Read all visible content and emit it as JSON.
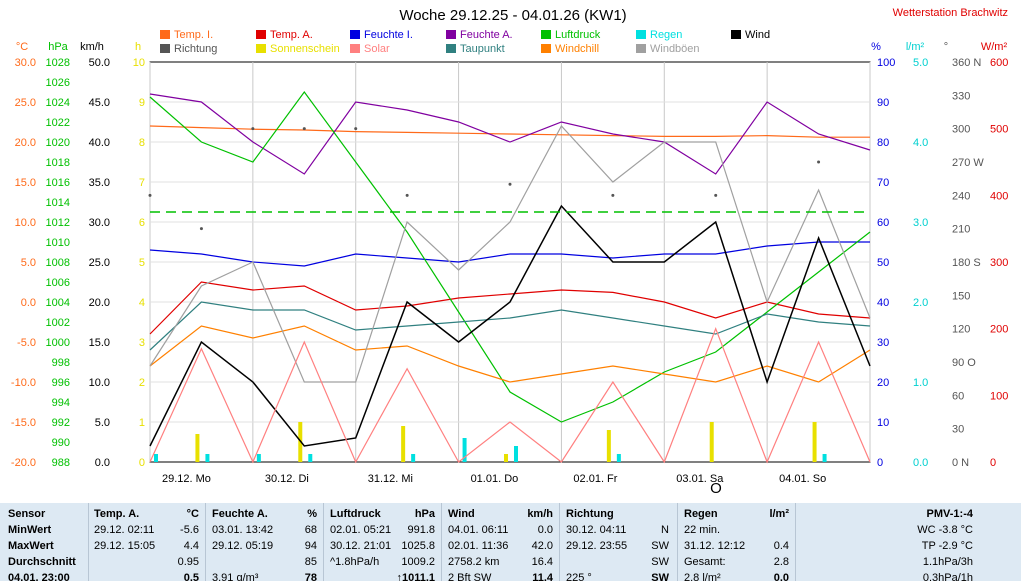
{
  "title": "Woche 29.12.25 - 04.01.26 (KW1)",
  "station": "Wetterstation Brachwitz",
  "legend": [
    {
      "label": "Temp. I.",
      "color": "#ff6a1a"
    },
    {
      "label": "Richtung",
      "color": "#555555"
    },
    {
      "label": "Temp. A.",
      "color": "#e00000"
    },
    {
      "label": "Sonnenschein",
      "color": "#e8e000"
    },
    {
      "label": "Feuchte I.",
      "color": "#0000e0"
    },
    {
      "label": "Solar",
      "color": "#ff8080"
    },
    {
      "label": "Feuchte A.",
      "color": "#8000a0"
    },
    {
      "label": "Taupunkt",
      "color": "#308080"
    },
    {
      "label": "Luftdruck",
      "color": "#00c000"
    },
    {
      "label": "Windchill",
      "color": "#ff8000"
    },
    {
      "label": "Regen",
      "color": "#00e0e0"
    },
    {
      "label": "Windböen",
      "color": "#a0a0a0"
    },
    {
      "label": "Wind",
      "color": "#000000"
    }
  ],
  "axes": [
    {
      "unit": "°C",
      "color": "#ff6a1a",
      "ticks": [
        "30.0",
        "25.0",
        "20.0",
        "15.0",
        "10.0",
        "5.0",
        "0.0",
        "-5.0",
        "-10.0",
        "-15.0",
        "-20.0"
      ]
    },
    {
      "unit": "hPa",
      "color": "#00c000",
      "ticks": [
        "1028",
        "1026",
        "1024",
        "1022",
        "1020",
        "1018",
        "1016",
        "1014",
        "1012",
        "1010",
        "1008",
        "1006",
        "1004",
        "1002",
        "1000",
        "998",
        "996",
        "994",
        "992",
        "990",
        "988"
      ]
    },
    {
      "unit": "km/h",
      "color": "#000000",
      "ticks": [
        "50.0",
        "45.0",
        "40.0",
        "35.0",
        "30.0",
        "25.0",
        "20.0",
        "15.0",
        "10.0",
        "5.0",
        "0.0"
      ]
    },
    {
      "unit": "h",
      "color": "#e8e000",
      "ticks": [
        "10",
        "9",
        "8",
        "7",
        "6",
        "5",
        "4",
        "3",
        "2",
        "1",
        "0"
      ]
    },
    {
      "unit": "%",
      "color": "#0000e0",
      "ticks": [
        "100",
        "90",
        "80",
        "70",
        "60",
        "50",
        "40",
        "30",
        "20",
        "10",
        "0"
      ]
    },
    {
      "unit": "l/m²",
      "color": "#00d0d0",
      "ticks": [
        "5.0",
        "4.0",
        "3.0",
        "2.0",
        "1.0",
        "0.0"
      ]
    },
    {
      "unit": "°",
      "color": "#555555",
      "ticks": [
        "360 N",
        "330",
        "300",
        "270 W",
        "240",
        "210",
        "180 S",
        "150",
        "120",
        "90 O",
        "60",
        "30",
        "0 N"
      ]
    },
    {
      "unit": "W/m²",
      "color": "#e00000",
      "ticks": [
        "600",
        "500",
        "400",
        "300",
        "200",
        "100",
        "0"
      ]
    }
  ],
  "day_labels": [
    "29.12. Mo",
    "30.12. Di",
    "31.12. Mi",
    "01.01. Do",
    "02.01. Fr",
    "03.01. Sa",
    "04.01. So"
  ],
  "wind_marker": "O",
  "chart_data": {
    "type": "line",
    "title": "Woche 29.12.25 - 04.01.26 (KW1)",
    "x_categories": [
      "29.12. Mo",
      "30.12. Di",
      "31.12. Mi",
      "01.01. Do",
      "02.01. Fr",
      "03.01. Sa",
      "04.01. So"
    ],
    "x_steps": [
      0,
      2,
      4,
      6,
      8,
      10,
      12,
      14,
      16,
      18,
      20,
      22,
      24,
      26,
      28
    ],
    "grid": true,
    "series": [
      {
        "name": "Temp. I.",
        "color": "#ff6a1a",
        "unit": "°C",
        "values": [
          22.0,
          21.8,
          21.6,
          21.5,
          21.3,
          21.2,
          21.1,
          21.0,
          20.9,
          20.8,
          20.7,
          20.7,
          20.8,
          20.6,
          20.6
        ]
      },
      {
        "name": "Temp. A.",
        "color": "#e00000",
        "unit": "°C",
        "values": [
          -4.0,
          2.5,
          1.5,
          2.0,
          -1.0,
          -0.5,
          0.5,
          1.0,
          1.5,
          1.2,
          0.0,
          -2.0,
          0.0,
          -1.5,
          -2.0
        ]
      },
      {
        "name": "Feuchte I.",
        "color": "#0000e0",
        "unit": "%",
        "values": [
          53,
          52,
          50,
          49,
          52,
          51,
          50,
          52,
          52,
          51,
          52,
          52,
          54,
          55,
          55
        ]
      },
      {
        "name": "Feuchte A.",
        "color": "#8000a0",
        "unit": "%",
        "values": [
          92,
          90,
          80,
          72,
          90,
          88,
          85,
          80,
          85,
          82,
          80,
          72,
          90,
          82,
          78
        ]
      },
      {
        "name": "Luftdruck",
        "color": "#00c000",
        "unit": "hPa",
        "values": [
          1024.5,
          1020.0,
          1018.0,
          1025.0,
          1018.0,
          1011.0,
          1003.0,
          995.0,
          992.0,
          994.0,
          997.0,
          999.0,
          1003.0,
          1007.0,
          1011.0
        ]
      },
      {
        "name": "Taupunkt",
        "color": "#308080",
        "unit": "°C",
        "values": [
          -6.0,
          0.0,
          -1.0,
          -1.0,
          -3.5,
          -3.0,
          -2.5,
          -2.0,
          -1.0,
          -2.0,
          -3.0,
          -4.0,
          -1.5,
          -2.5,
          -3.0
        ]
      },
      {
        "name": "Windchill",
        "color": "#ff8000",
        "unit": "°C",
        "values": [
          -8.0,
          -3.0,
          -4.5,
          -3.0,
          -6.0,
          -5.5,
          -8.0,
          -10.0,
          -9.0,
          -8.0,
          -9.0,
          -10.0,
          -8.0,
          -10.0,
          -6.0
        ]
      },
      {
        "name": "Wind",
        "color": "#000000",
        "unit": "km/h",
        "values": [
          2.0,
          15.0,
          10.0,
          2.0,
          3.0,
          20.0,
          15.0,
          20.0,
          32.0,
          25.0,
          25.0,
          30.0,
          10.0,
          28.0,
          12.0
        ]
      },
      {
        "name": "Windböen",
        "color": "#a0a0a0",
        "unit": "km/h",
        "values": [
          12.0,
          22.0,
          25.0,
          10.0,
          10.0,
          30.0,
          24.0,
          30.0,
          42.0,
          35.0,
          40.0,
          40.0,
          20.0,
          34.0,
          18.0
        ]
      },
      {
        "name": "Solar",
        "color": "#ff8080",
        "unit": "W/m²",
        "values": [
          0,
          170,
          0,
          180,
          0,
          140,
          0,
          60,
          0,
          120,
          0,
          200,
          0,
          180,
          0
        ]
      },
      {
        "name": "Sonnenschein",
        "color": "#e8e000",
        "unit": "h",
        "values": [
          0,
          0.7,
          0,
          1.0,
          0,
          0.9,
          0,
          0.2,
          0,
          0.8,
          0,
          1.0,
          0,
          1.0,
          0
        ]
      },
      {
        "name": "Regen",
        "color": "#00e0e0",
        "unit": "l/m²",
        "values": [
          0.1,
          0.1,
          0.1,
          0.1,
          0,
          0.1,
          0.3,
          0.2,
          0,
          0.1,
          0,
          0,
          0,
          0.1,
          0
        ]
      },
      {
        "name": "Richtung",
        "color": "#555555",
        "unit": "°",
        "values": [
          240,
          210,
          300,
          300,
          300,
          240,
          0,
          250,
          0,
          240,
          0,
          240,
          0,
          270,
          0
        ]
      }
    ],
    "dashed_reference": {
      "name": "Luftdruck reference",
      "unit": "hPa",
      "value": 1013
    }
  },
  "stats": {
    "sensor": {
      "header": "Sensor",
      "rows": [
        "MinWert",
        "MaxWert",
        "Durchschnitt",
        "04.01. 23:00"
      ]
    },
    "temp": {
      "header": "Temp. A.",
      "unit": "°C",
      "rows": [
        [
          "29.12.  02:11",
          "-5.6"
        ],
        [
          "29.12.  15:05",
          "4.4"
        ],
        [
          "",
          "0.95"
        ],
        [
          "",
          "0.5"
        ]
      ]
    },
    "humidity": {
      "header": "Feuchte A.",
      "unit": "%",
      "rows": [
        [
          "03.01.  13:42",
          "68"
        ],
        [
          "29.12.  05:19",
          "94"
        ],
        [
          "",
          "85"
        ],
        [
          "3.91 g/m³",
          "78"
        ]
      ]
    },
    "pressure": {
      "header": "Luftdruck",
      "unit": "hPa",
      "rows": [
        [
          "02.01.  05:21",
          "991.8"
        ],
        [
          "30.12.  21:01",
          "1025.8"
        ],
        [
          "^1.8hPa/h",
          "1009.2"
        ],
        [
          "",
          "↑1011.1"
        ]
      ]
    },
    "wind": {
      "header": "Wind",
      "unit": "km/h",
      "rows": [
        [
          "04.01.  06:11",
          "0.0"
        ],
        [
          "02.01.  11:36",
          "42.0"
        ],
        [
          "2758.2 km",
          "16.4"
        ],
        [
          "2 Bft SW",
          "11.4"
        ]
      ]
    },
    "direction": {
      "header": "Richtung",
      "rows": [
        [
          "30.12.  04:11",
          "N"
        ],
        [
          "29.12.  23:55",
          "SW"
        ],
        [
          "",
          "SW"
        ],
        [
          "225 °",
          "SW"
        ]
      ]
    },
    "rain": {
      "header": "Regen",
      "unit": "l/m²",
      "rows": [
        [
          "22 min.",
          ""
        ],
        [
          "31.12.  12:12",
          "0.4"
        ],
        [
          "Gesamt:",
          "2.8"
        ],
        [
          "2.8 l/m²",
          "0.0"
        ]
      ]
    },
    "pmv": {
      "header": "PMV-1:-4",
      "rows": [
        "WC -3.8 °C",
        "TP -2.9 °C",
        "1.1hPa/3h",
        "0.3hPa/1h"
      ]
    }
  }
}
